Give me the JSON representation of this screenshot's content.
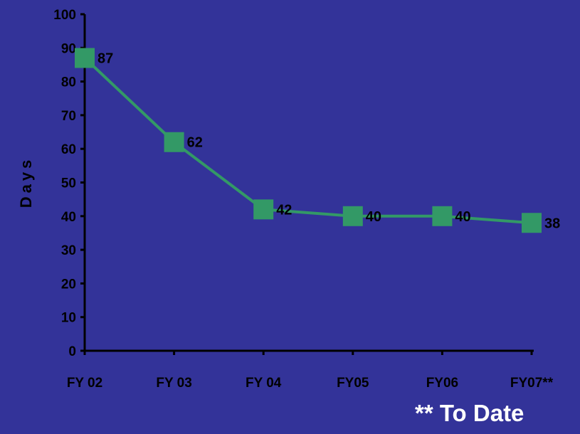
{
  "chart_data": {
    "type": "line",
    "categories": [
      "FY 02",
      "FY 03",
      "FY 04",
      "FY05",
      "FY06",
      "FY07**"
    ],
    "series": [
      {
        "values": [
          87,
          62,
          42,
          40,
          40,
          38
        ]
      }
    ],
    "data_labels": [
      "87",
      "62",
      "42",
      "40",
      "40",
      "38"
    ],
    "ylabel": "Days",
    "ylim": [
      0,
      100
    ],
    "yticks": [
      "0",
      "10",
      "20",
      "30",
      "40",
      "50",
      "60",
      "70",
      "80",
      "90",
      "100"
    ],
    "grid": false,
    "legend": "none",
    "colors": {
      "background": "#333399",
      "line": "#339966",
      "marker": "#339966",
      "axis": "#000000",
      "text": "#000000"
    }
  },
  "footnote": "** To Date"
}
